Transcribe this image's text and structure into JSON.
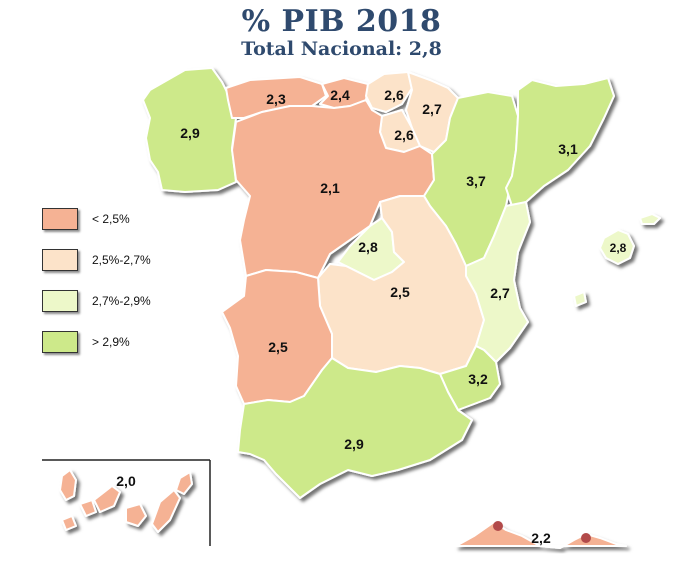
{
  "title": "% PIB 2018",
  "subtitle": "Total Nacional: 2,8",
  "colors": {
    "lt_2_5": "#f5b294",
    "2_5_2_7": "#fce3c9",
    "2_7_2_9": "#edf8c9",
    "gt_2_9": "#cde98a",
    "marker": "#b24a4a"
  },
  "legend": [
    {
      "label": "< 2,5%",
      "color": "#f5b294"
    },
    {
      "label": "2,5%-2,7%",
      "color": "#fce3c9"
    },
    {
      "label": "2,7%-2,9%",
      "color": "#edf8c9"
    },
    {
      "label": "> 2,9%",
      "color": "#cde98a"
    }
  ],
  "regions": {
    "galicia": "2,9",
    "asturias": "2,3",
    "cantabria": "2,4",
    "pais_vasco": "2,6",
    "navarra": "2,7",
    "la_rioja": "2,6",
    "aragon": "3,7",
    "cataluna": "3,1",
    "castilla_leon": "2,1",
    "madrid": "2,8",
    "castilla_la_mancha": "2,5",
    "comunidad_valenciana": "2,7",
    "extremadura": "2,5",
    "murcia": "3,2",
    "andalucia": "2,9",
    "baleares": "2,8",
    "canarias": "2,0",
    "ceuta_melilla": "2,2"
  }
}
